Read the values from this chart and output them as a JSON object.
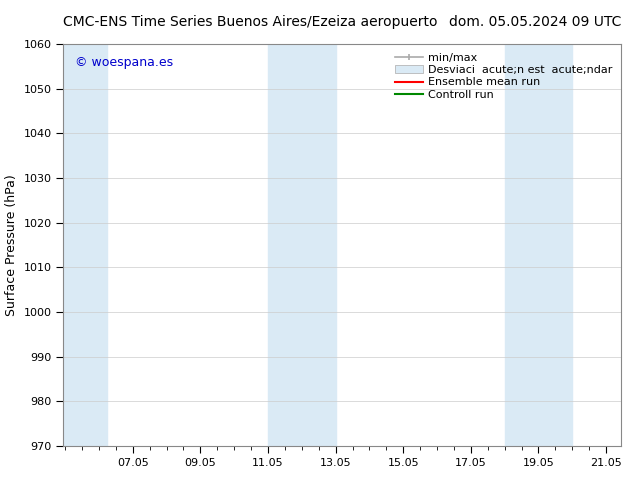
{
  "title_left": "CMC-ENS Time Series Buenos Aires/Ezeiza aeropuerto",
  "title_right": "dom. 05.05.2024 09 UTC",
  "ylabel": "Surface Pressure (hPa)",
  "ylim": [
    970,
    1060
  ],
  "yticks": [
    970,
    980,
    990,
    1000,
    1010,
    1020,
    1030,
    1040,
    1050,
    1060
  ],
  "xlim": [
    5.0,
    21.5
  ],
  "xticks": [
    7.05,
    9.05,
    11.05,
    13.05,
    15.05,
    17.05,
    19.05,
    21.05
  ],
  "xlabel_labels": [
    "07.05",
    "09.05",
    "11.05",
    "13.05",
    "15.05",
    "17.05",
    "19.05",
    "21.05"
  ],
  "watermark": "© woespana.es",
  "watermark_color": "#0000cc",
  "bg_color": "#ffffff",
  "plot_bg_color": "#ffffff",
  "shaded_bands": [
    {
      "xmin": 5.0,
      "xmax": 6.3,
      "color": "#daeaf5"
    },
    {
      "xmin": 11.05,
      "xmax": 13.05,
      "color": "#daeaf5"
    },
    {
      "xmin": 18.05,
      "xmax": 20.05,
      "color": "#daeaf5"
    }
  ],
  "legend_label_minmax": "min/max",
  "legend_label_std": "Desviaci  acute;n est  acute;ndar",
  "legend_label_ens": "Ensemble mean run",
  "legend_label_ctrl": "Controll run",
  "legend_color_minmax": "#aaaaaa",
  "legend_color_std": "#daeaf5",
  "legend_color_ens": "#ff0000",
  "legend_color_ctrl": "#008800",
  "title_fontsize": 10,
  "tick_fontsize": 8,
  "ylabel_fontsize": 9,
  "legend_fontsize": 8
}
